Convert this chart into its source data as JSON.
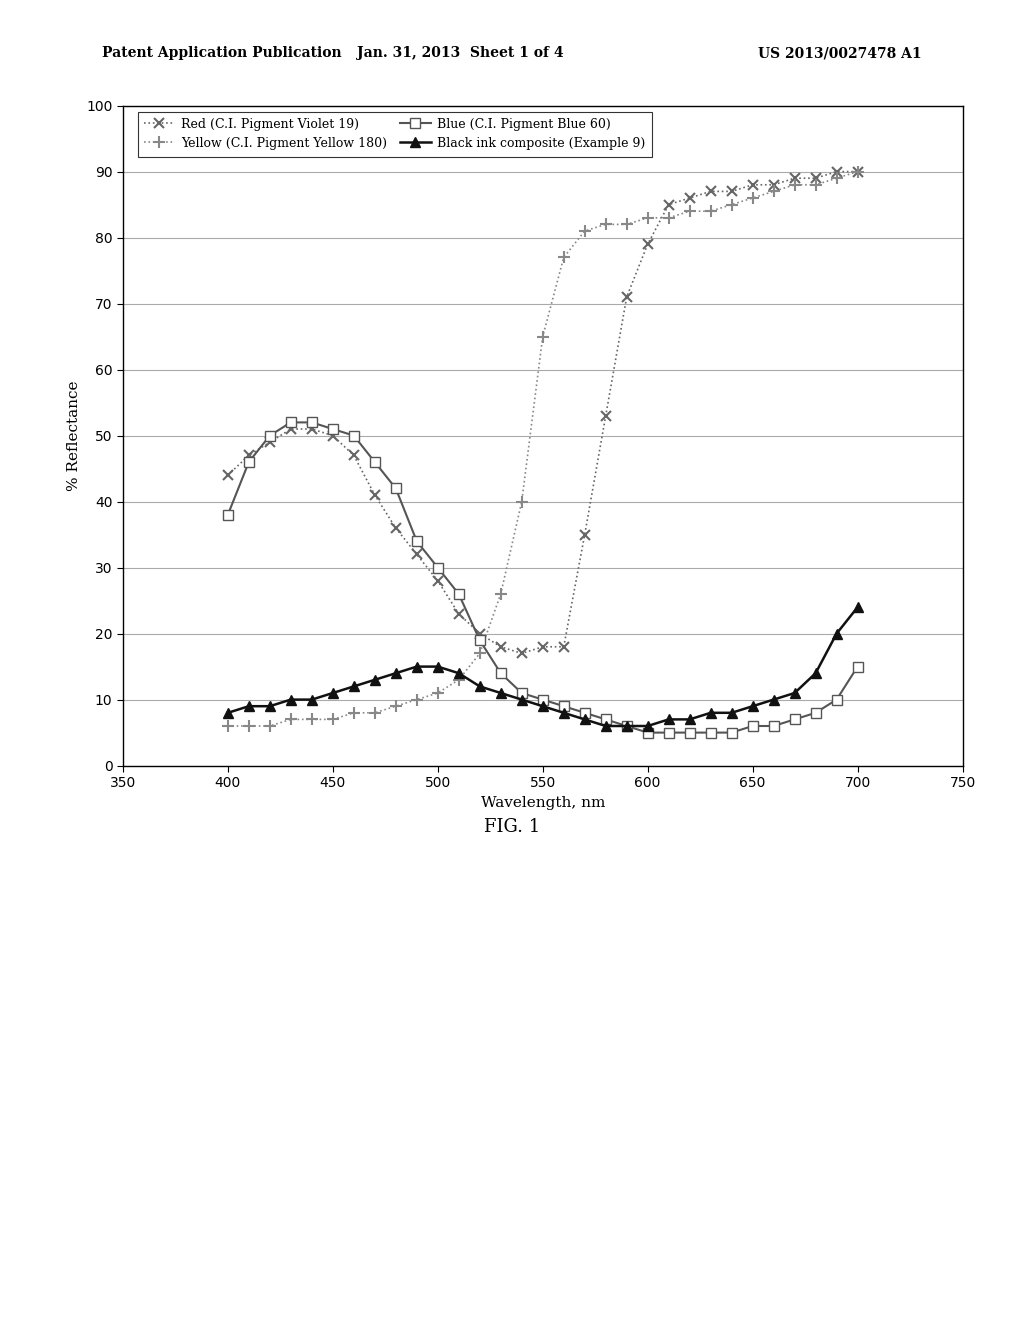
{
  "header_left": "Patent Application Publication",
  "header_mid": "Jan. 31, 2013  Sheet 1 of 4",
  "header_right": "US 2013/0027478 A1",
  "figure_label": "FIG. 1",
  "xlabel": "Wavelength, nm",
  "ylabel": "% Reflectance",
  "xlim": [
    350,
    750
  ],
  "ylim": [
    0,
    100
  ],
  "xticks": [
    350,
    400,
    450,
    500,
    550,
    600,
    650,
    700,
    750
  ],
  "yticks": [
    0,
    10,
    20,
    30,
    40,
    50,
    60,
    70,
    80,
    90,
    100
  ],
  "red_label": "Red (C.I. Pigment Violet 19)",
  "yellow_label": "Yellow (C.I. Pigment Yellow 180)",
  "blue_label": "Blue (C.I. Pigment Blue 60)",
  "black_label": "Black ink composite (Example 9)",
  "red_x": [
    400,
    410,
    420,
    430,
    440,
    450,
    460,
    470,
    480,
    490,
    500,
    510,
    520,
    530,
    540,
    550,
    560,
    570,
    580,
    590,
    600,
    610,
    620,
    630,
    640,
    650,
    660,
    670,
    680,
    690,
    700
  ],
  "red_y": [
    44,
    47,
    49,
    51,
    51,
    50,
    47,
    41,
    36,
    32,
    28,
    23,
    20,
    18,
    17,
    18,
    18,
    35,
    53,
    71,
    79,
    85,
    86,
    87,
    87,
    88,
    88,
    89,
    89,
    90,
    90
  ],
  "yellow_x": [
    400,
    410,
    420,
    430,
    440,
    450,
    460,
    470,
    480,
    490,
    500,
    510,
    520,
    530,
    540,
    550,
    560,
    570,
    580,
    590,
    600,
    610,
    620,
    630,
    640,
    650,
    660,
    670,
    680,
    690,
    700
  ],
  "yellow_y": [
    6,
    6,
    6,
    7,
    7,
    7,
    8,
    8,
    9,
    10,
    11,
    13,
    17,
    26,
    40,
    65,
    77,
    81,
    82,
    82,
    83,
    83,
    84,
    84,
    85,
    86,
    87,
    88,
    88,
    89,
    90
  ],
  "blue_x": [
    400,
    410,
    420,
    430,
    440,
    450,
    460,
    470,
    480,
    490,
    500,
    510,
    520,
    530,
    540,
    550,
    560,
    570,
    580,
    590,
    600,
    610,
    620,
    630,
    640,
    650,
    660,
    670,
    680,
    690,
    700
  ],
  "blue_y": [
    38,
    46,
    50,
    52,
    52,
    51,
    50,
    46,
    42,
    34,
    30,
    26,
    19,
    14,
    11,
    10,
    9,
    8,
    7,
    6,
    5,
    5,
    5,
    5,
    5,
    6,
    6,
    7,
    8,
    10,
    15
  ],
  "black_x": [
    400,
    410,
    420,
    430,
    440,
    450,
    460,
    470,
    480,
    490,
    500,
    510,
    520,
    530,
    540,
    550,
    560,
    570,
    580,
    590,
    600,
    610,
    620,
    630,
    640,
    650,
    660,
    670,
    680,
    690,
    700
  ],
  "black_y": [
    8,
    9,
    9,
    10,
    10,
    11,
    12,
    13,
    14,
    15,
    15,
    14,
    12,
    11,
    10,
    9,
    8,
    7,
    6,
    6,
    6,
    7,
    7,
    8,
    8,
    9,
    10,
    11,
    14,
    20,
    24
  ],
  "background_color": "#ffffff",
  "line_color": "#000000",
  "grid_color": "#aaaaaa"
}
